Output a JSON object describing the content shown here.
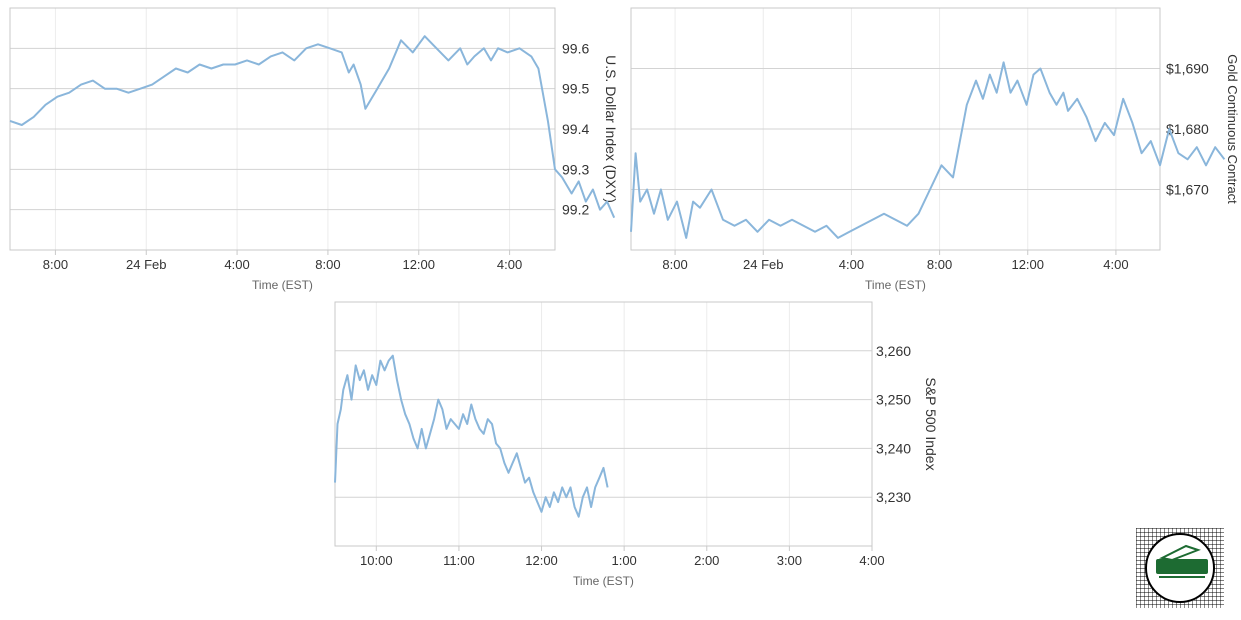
{
  "chart_data": [
    {
      "type": "line",
      "xlabel": "Time (EST)",
      "ylabel": "U.S. Dollar Index (DXY)",
      "x_ticks": [
        "8:00",
        "24 Feb",
        "4:00",
        "8:00",
        "12:00",
        "4:00"
      ],
      "y_ticks": [
        "99.6",
        "99.5",
        "99.4",
        "99.3",
        "99.2"
      ],
      "ylim": [
        99.1,
        99.7
      ],
      "grid": true,
      "x_hours": [
        -19,
        4
      ],
      "series": [
        {
          "color": "#8ab6db",
          "x": [
            -19,
            -18.5,
            -18,
            -17.5,
            -17,
            -16.5,
            -16,
            -15.5,
            -15,
            -14.5,
            -14,
            -13.5,
            -13,
            -12.5,
            -12,
            -11.5,
            -11,
            -10.5,
            -10,
            -9.5,
            -9,
            -8.5,
            -8,
            -7.5,
            -7,
            -6.5,
            -6,
            -5.5,
            -5,
            -4.7,
            -4.5,
            -4.2,
            -4,
            -3.5,
            -3,
            -2.5,
            -2,
            -1.5,
            -1,
            -0.5,
            0,
            0.3,
            0.6,
            1,
            1.3,
            1.6,
            2,
            2.5,
            3,
            3.3,
            3.7,
            4,
            4.3,
            4.7,
            5,
            5.3,
            5.6,
            5.9,
            6.2,
            6.5
          ],
          "y": [
            99.42,
            99.41,
            99.43,
            99.46,
            99.48,
            99.49,
            99.51,
            99.52,
            99.5,
            99.5,
            99.49,
            99.5,
            99.51,
            99.53,
            99.55,
            99.54,
            99.56,
            99.55,
            99.56,
            99.56,
            99.57,
            99.56,
            99.58,
            99.59,
            99.57,
            99.6,
            99.61,
            99.6,
            99.59,
            99.54,
            99.56,
            99.51,
            99.45,
            99.5,
            99.55,
            99.62,
            99.59,
            99.63,
            99.6,
            99.57,
            99.6,
            99.56,
            99.58,
            99.6,
            99.57,
            99.6,
            99.59,
            99.6,
            99.58,
            99.55,
            99.42,
            99.3,
            99.28,
            99.24,
            99.27,
            99.22,
            99.25,
            99.2,
            99.22,
            99.18
          ]
        }
      ]
    },
    {
      "type": "line",
      "xlabel": "Time (EST)",
      "ylabel": "Gold Continuous Contract",
      "x_ticks": [
        "8:00",
        "24 Feb",
        "4:00",
        "8:00",
        "12:00",
        "4:00"
      ],
      "y_ticks": [
        "$1,690",
        "$1,680",
        "$1,670"
      ],
      "ylim": [
        1660,
        1700
      ],
      "grid": true,
      "x_hours": [
        -19,
        4
      ],
      "series": [
        {
          "color": "#8ab6db",
          "x": [
            -19,
            -18.8,
            -18.6,
            -18.3,
            -18,
            -17.7,
            -17.4,
            -17,
            -16.6,
            -16.3,
            -16,
            -15.5,
            -15,
            -14.5,
            -14,
            -13.5,
            -13,
            -12.5,
            -12,
            -11.5,
            -11,
            -10.5,
            -10,
            -9.5,
            -9,
            -8.5,
            -8,
            -7.5,
            -7,
            -6.5,
            -6,
            -5.5,
            -5,
            -4.7,
            -4.4,
            -4,
            -3.7,
            -3.4,
            -3.1,
            -2.8,
            -2.5,
            -2.2,
            -1.8,
            -1.5,
            -1.2,
            -0.8,
            -0.5,
            -0.2,
            0,
            0.4,
            0.8,
            1.2,
            1.6,
            2,
            2.4,
            2.8,
            3.2,
            3.6,
            4,
            4.4,
            4.8,
            5.2,
            5.6,
            6,
            6.4,
            6.8
          ],
          "y": [
            1663,
            1676,
            1668,
            1670,
            1666,
            1670,
            1665,
            1668,
            1662,
            1668,
            1667,
            1670,
            1665,
            1664,
            1665,
            1663,
            1665,
            1664,
            1665,
            1664,
            1663,
            1664,
            1662,
            1663,
            1664,
            1665,
            1666,
            1665,
            1664,
            1666,
            1670,
            1674,
            1672,
            1678,
            1684,
            1688,
            1685,
            1689,
            1686,
            1691,
            1686,
            1688,
            1684,
            1689,
            1690,
            1686,
            1684,
            1686,
            1683,
            1685,
            1682,
            1678,
            1681,
            1679,
            1685,
            1681,
            1676,
            1678,
            1674,
            1680,
            1676,
            1675,
            1677,
            1674,
            1677,
            1675
          ]
        }
      ]
    },
    {
      "type": "line",
      "xlabel": "Time (EST)",
      "ylabel": "S&P 500 Index",
      "x_ticks": [
        "10:00",
        "11:00",
        "12:00",
        "1:00",
        "2:00",
        "3:00",
        "4:00"
      ],
      "y_ticks": [
        "3,260",
        "3,250",
        "3,240",
        "3,230"
      ],
      "ylim": [
        3220,
        3270
      ],
      "grid": true,
      "x_hours": [
        9.5,
        16
      ],
      "series": [
        {
          "color": "#8ab6db",
          "x": [
            9.5,
            9.53,
            9.57,
            9.6,
            9.65,
            9.7,
            9.75,
            9.8,
            9.85,
            9.9,
            9.95,
            10,
            10.05,
            10.1,
            10.15,
            10.2,
            10.25,
            10.3,
            10.35,
            10.4,
            10.45,
            10.5,
            10.55,
            10.6,
            10.65,
            10.7,
            10.75,
            10.8,
            10.85,
            10.9,
            10.95,
            11,
            11.05,
            11.1,
            11.15,
            11.2,
            11.25,
            11.3,
            11.35,
            11.4,
            11.45,
            11.5,
            11.55,
            11.6,
            11.65,
            11.7,
            11.75,
            11.8,
            11.85,
            11.9,
            11.95,
            12,
            12.05,
            12.1,
            12.15,
            12.2,
            12.25,
            12.3,
            12.35,
            12.4,
            12.45,
            12.5,
            12.55,
            12.6,
            12.65,
            12.7,
            12.75,
            12.8
          ],
          "y": [
            3233,
            3245,
            3248,
            3252,
            3255,
            3250,
            3257,
            3254,
            3256,
            3252,
            3255,
            3253,
            3258,
            3256,
            3258,
            3259,
            3254,
            3250,
            3247,
            3245,
            3242,
            3240,
            3244,
            3240,
            3243,
            3246,
            3250,
            3248,
            3244,
            3246,
            3245,
            3244,
            3247,
            3245,
            3249,
            3246,
            3244,
            3243,
            3246,
            3245,
            3241,
            3240,
            3237,
            3235,
            3237,
            3239,
            3236,
            3233,
            3234,
            3231,
            3229,
            3227,
            3230,
            3228,
            3231,
            3229,
            3232,
            3230,
            3232,
            3228,
            3226,
            3230,
            3232,
            3228,
            3232,
            3234,
            3236,
            3232
          ]
        }
      ]
    }
  ]
}
